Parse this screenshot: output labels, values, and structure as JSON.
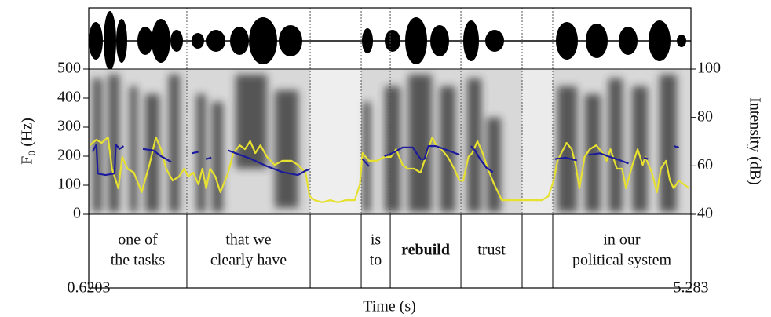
{
  "chart_data": {
    "type": "line",
    "x_label": "Time (s)",
    "y_label": "F₀ (Hz)",
    "y2_label": "Intensity (dB)",
    "xlim": [
      0.6203,
      5.283
    ],
    "xticks": [
      0.6203,
      5.283
    ],
    "ylim": [
      0,
      500
    ],
    "yticks": [
      0,
      100,
      200,
      300,
      400,
      500
    ],
    "y2lim": [
      40,
      100
    ],
    "y2ticks": [
      40,
      60,
      80,
      100
    ],
    "series": [
      {
        "name": "F0",
        "color": "#1c1c9c",
        "axis": "y",
        "x": [
          0.65,
          0.68,
          0.69,
          0.75,
          0.82,
          0.83,
          0.86,
          0.89,
          0.95,
          1.04,
          1.12,
          1.18,
          1.26,
          1.34,
          1.42,
          1.47,
          1.5,
          1.53,
          1.57,
          1.63,
          1.7,
          1.76,
          1.88,
          2.0,
          2.12,
          2.24,
          2.3,
          2.33,
          2.5,
          2.74,
          2.79,
          2.85,
          2.91,
          2.97,
          3.05,
          3.13,
          3.19,
          3.22,
          3.25,
          3.31,
          3.37,
          3.43,
          3.49,
          3.54,
          3.58,
          3.61,
          3.65,
          3.7,
          3.75,
          4.0,
          4.23,
          4.31,
          4.4,
          4.45,
          4.49,
          4.58,
          4.64,
          4.74,
          4.8,
          4.86,
          4.92,
          4.95,
          5.05,
          5.15,
          5.19
        ],
        "values": [
          215,
          240,
          140,
          135,
          140,
          240,
          225,
          235,
          null,
          225,
          220,
          200,
          180,
          null,
          210,
          215,
          null,
          190,
          195,
          null,
          220,
          210,
          190,
          165,
          145,
          135,
          150,
          155,
          null,
          190,
          165,
          null,
          200,
          210,
          230,
          230,
          190,
          190,
          235,
          235,
          225,
          215,
          205,
          null,
          235,
          220,
          190,
          160,
          145,
          null,
          190,
          195,
          185,
          null,
          205,
          210,
          200,
          185,
          175,
          null,
          195,
          190,
          null,
          235,
          230
        ]
      },
      {
        "name": "Intensity",
        "color": "#e6e030",
        "axis": "y2",
        "x": [
          0.63,
          0.68,
          0.72,
          0.77,
          0.8,
          0.85,
          0.88,
          0.92,
          0.97,
          1.03,
          1.09,
          1.14,
          1.18,
          1.22,
          1.27,
          1.32,
          1.36,
          1.39,
          1.43,
          1.47,
          1.5,
          1.53,
          1.56,
          1.6,
          1.64,
          1.7,
          1.74,
          1.79,
          1.83,
          1.87,
          1.91,
          1.95,
          2.0,
          2.06,
          2.12,
          2.19,
          2.24,
          2.3,
          2.33,
          2.37,
          2.43,
          2.49,
          2.55,
          2.61,
          2.68,
          2.72,
          2.74,
          2.79,
          2.85,
          2.91,
          2.96,
          3.0,
          3.05,
          3.09,
          3.14,
          3.19,
          3.22,
          3.25,
          3.28,
          3.31,
          3.35,
          3.4,
          3.45,
          3.49,
          3.52,
          3.56,
          3.59,
          3.63,
          3.67,
          3.71,
          3.76,
          3.82,
          3.88,
          3.95,
          4.02,
          4.13,
          4.18,
          4.22,
          4.25,
          4.28,
          4.32,
          4.36,
          4.39,
          4.42,
          4.46,
          4.5,
          4.55,
          4.6,
          4.63,
          4.66,
          4.71,
          4.75,
          4.78,
          4.83,
          4.87,
          4.91,
          4.93,
          4.98,
          5.02,
          5.05,
          5.09,
          5.12,
          5.15,
          5.19,
          5.23,
          5.27
        ],
        "values": [
          68.5,
          70.8,
          69.5,
          71.8,
          58.8,
          50.7,
          63.7,
          58.8,
          57.2,
          49.1,
          60.4,
          71.8,
          66.9,
          58.8,
          53.9,
          55.6,
          58.8,
          55.6,
          57.2,
          52.3,
          58.8,
          50.7,
          58.8,
          55.6,
          49.1,
          57.2,
          65.3,
          68.5,
          66.9,
          70.2,
          65.3,
          68.5,
          63.7,
          60.4,
          62.1,
          62.1,
          60.4,
          57.2,
          47.5,
          45.8,
          44.9,
          45.8,
          44.9,
          45.8,
          45.8,
          52.3,
          65.3,
          62.1,
          62.1,
          63.7,
          63.7,
          66.9,
          60.4,
          58.8,
          58.8,
          57.2,
          62.1,
          66.9,
          71.8,
          68.5,
          66.9,
          63.7,
          58.8,
          53.9,
          53.9,
          63.7,
          65.3,
          70.2,
          65.3,
          58.8,
          52.3,
          45.8,
          45.8,
          45.8,
          45.8,
          45.8,
          47.5,
          53.9,
          62.1,
          65.3,
          69.5,
          66.9,
          60.4,
          50.7,
          63.7,
          66.9,
          68.5,
          65.3,
          62.1,
          66.9,
          58.8,
          58.8,
          50.7,
          60.4,
          66.9,
          60.4,
          63.7,
          57.2,
          49.1,
          58.8,
          62.1,
          53.9,
          50.7,
          53.9,
          52.3,
          50.7
        ]
      }
    ],
    "tier": {
      "boundaries": [
        1.38,
        2.335,
        2.73,
        2.955,
        3.502,
        3.976,
        4.213
      ],
      "labels": [
        [
          "one of",
          "the tasks"
        ],
        [
          "that we",
          "clearly have"
        ],
        null,
        [
          "is",
          "to"
        ],
        [
          "rebuild"
        ],
        [
          "trust"
        ],
        null,
        [
          "in our",
          "political system"
        ]
      ],
      "bold": [
        false,
        false,
        false,
        false,
        true,
        false,
        false,
        false
      ]
    }
  }
}
